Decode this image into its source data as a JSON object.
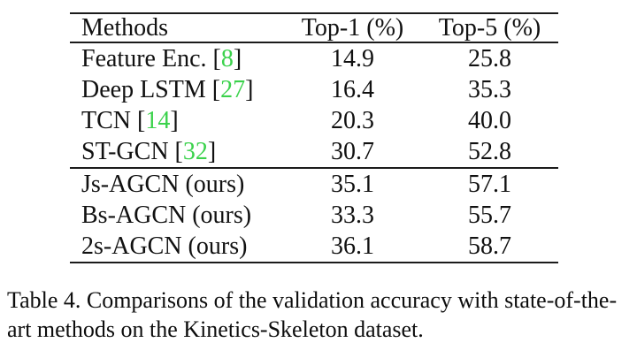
{
  "table": {
    "columns": [
      "Methods",
      "Top-1 (%)",
      "Top-5 (%)"
    ],
    "bracket_open": "[",
    "bracket_close": "]",
    "citation_color": "#3bd24c",
    "groups": [
      {
        "rows": [
          {
            "method": "Feature Enc.",
            "cite": "8",
            "top1": "14.9",
            "top5": "25.8"
          },
          {
            "method": "Deep LSTM",
            "cite": "27",
            "top1": "16.4",
            "top5": "35.3"
          },
          {
            "method": "TCN",
            "cite": "14",
            "top1": "20.3",
            "top5": "40.0"
          },
          {
            "method": "ST-GCN",
            "cite": "32",
            "top1": "30.7",
            "top5": "52.8"
          }
        ]
      },
      {
        "rows": [
          {
            "method": "Js-AGCN (ours)",
            "top1": "35.1",
            "top5": "57.1"
          },
          {
            "method": "Bs-AGCN (ours)",
            "top1": "33.3",
            "top5": "55.7"
          },
          {
            "method": "2s-AGCN (ours)",
            "top1": "36.1",
            "top5": "58.7"
          }
        ]
      }
    ]
  },
  "caption": {
    "line1": "Table 4. Comparisons of the validation accuracy with state-of-the-",
    "line2": "art methods on the Kinetics-Skeleton dataset."
  }
}
